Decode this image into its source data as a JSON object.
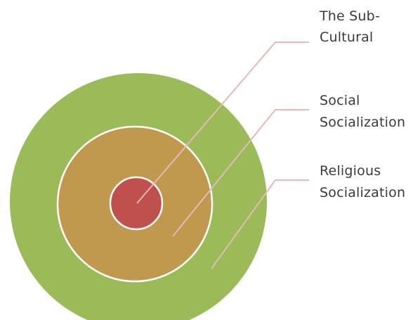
{
  "diagram": {
    "layers": [
      {
        "id": "sub-cultural",
        "label_lines": [
          "The Sub-",
          "Cultural"
        ],
        "fill": "#c0504d"
      },
      {
        "id": "social",
        "label_lines": [
          "Social",
          "Socialization"
        ],
        "fill": "#c0994f"
      },
      {
        "id": "religious",
        "label_lines": [
          "Religious",
          "Socialization"
        ],
        "fill": "#9bbb59"
      }
    ],
    "ring_border": "#ffffff",
    "leader_line_color": "#e6b8b7"
  }
}
